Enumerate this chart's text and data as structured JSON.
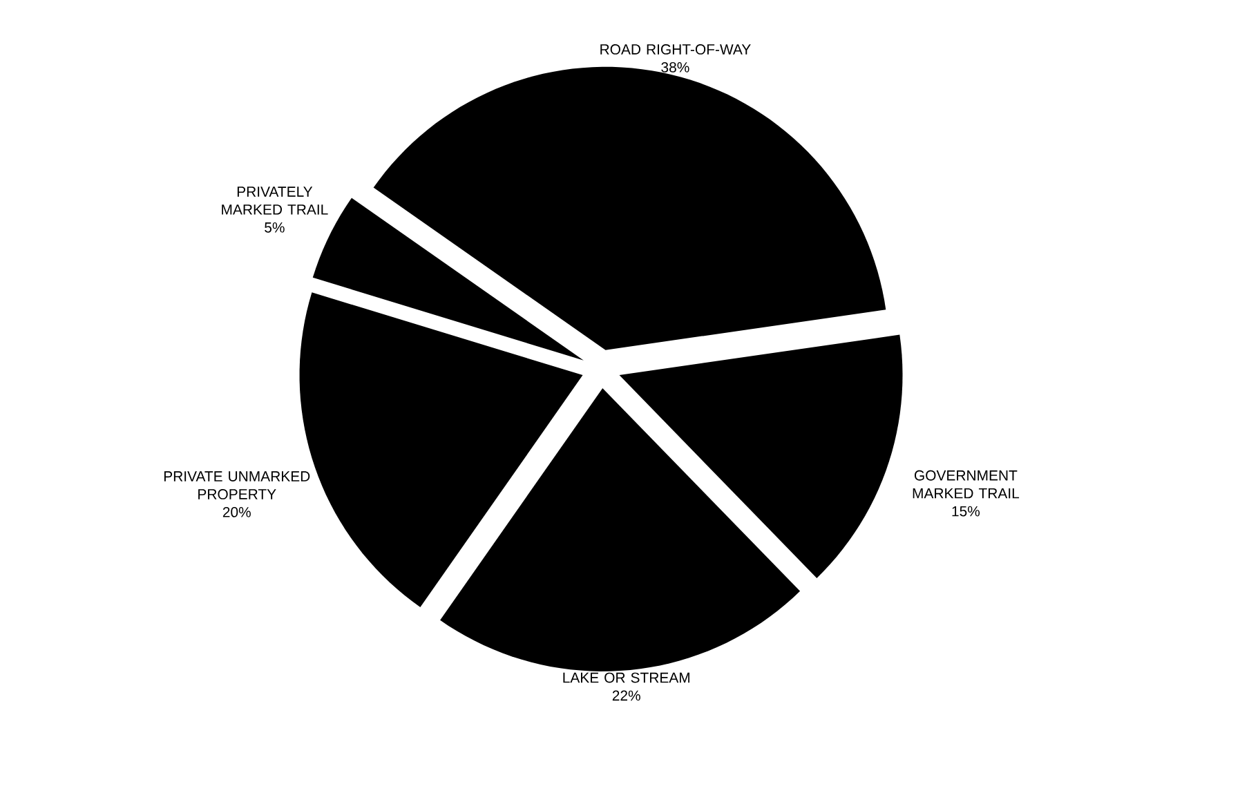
{
  "chart_data": {
    "type": "pie",
    "categories": [
      "ROAD RIGHT-OF-WAY",
      "GOVERNMENT MARKED TRAIL",
      "LAKE OR STREAM",
      "PRIVATE UNMARKED PROPERTY",
      "PRIVATELY MARKED TRAIL"
    ],
    "values": [
      38,
      15,
      22,
      20,
      5
    ],
    "value_labels": [
      "38%",
      "15%",
      "22%",
      "20%",
      "5%"
    ],
    "colors": [
      "#000000",
      "#000000",
      "#000000",
      "#000000",
      "#000000"
    ]
  }
}
